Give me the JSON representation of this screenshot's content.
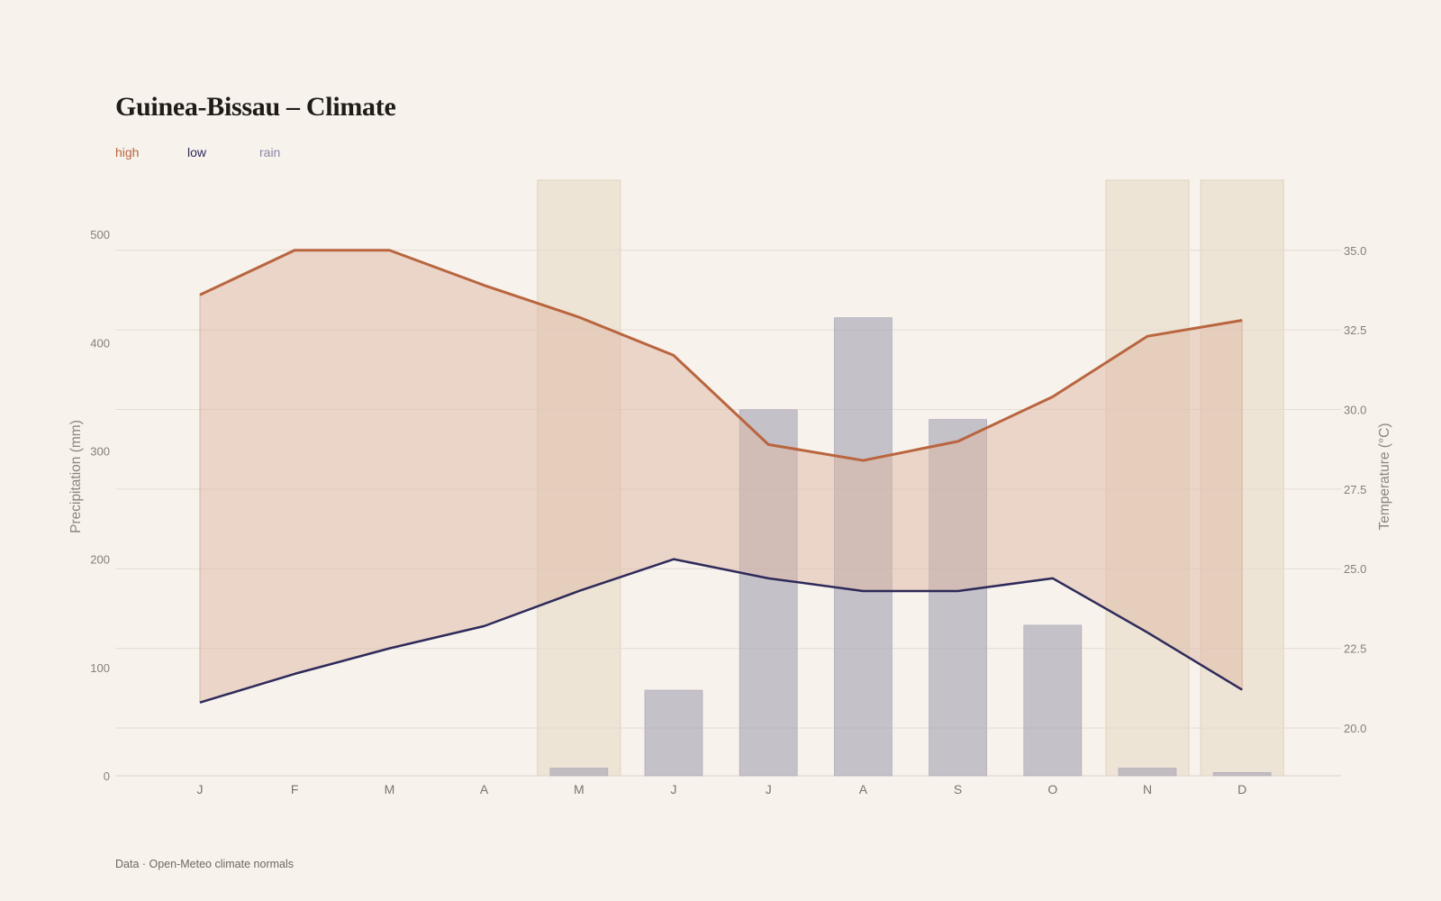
{
  "title": "Guinea-Bissau – Climate",
  "legend": {
    "high": "high",
    "low": "low",
    "rain": "rain"
  },
  "source": "Data · Open-Meteo climate normals",
  "colors": {
    "high": "#b9653f",
    "low": "#2e2a5a",
    "rain": "#8b87a6",
    "band_fill": "#dfb7a3",
    "rain_bar": "#aaa6b6",
    "dry_highlight": "#e6d8c2"
  },
  "chart_data": {
    "type": "bar",
    "categories": [
      "J",
      "F",
      "M",
      "A",
      "M",
      "J",
      "J",
      "A",
      "S",
      "O",
      "N",
      "D"
    ],
    "series": [
      {
        "name": "rain",
        "type": "bar",
        "axis": "left",
        "values": [
          0,
          0,
          0,
          0,
          7,
          79,
          338,
          423,
          329,
          139,
          7,
          3
        ]
      },
      {
        "name": "high",
        "type": "line",
        "axis": "right",
        "values": [
          33.6,
          35.0,
          35.0,
          33.9,
          32.9,
          31.7,
          28.9,
          28.4,
          29.0,
          30.4,
          32.3,
          32.8
        ]
      },
      {
        "name": "low",
        "type": "line",
        "axis": "right",
        "values": [
          20.8,
          21.7,
          22.5,
          23.2,
          24.3,
          25.3,
          24.7,
          24.3,
          24.3,
          24.7,
          23.0,
          21.2
        ]
      }
    ],
    "highlighted_months": [
      4,
      10,
      11
    ],
    "ylabel_left": "Precipitation (mm)",
    "ylabel_right": "Temperature (°C)",
    "ylim_left": [
      0,
      550
    ],
    "ylim_right": [
      18.5,
      37.2
    ],
    "yticks_left": [
      0,
      100,
      200,
      300,
      400,
      500
    ],
    "yticks_right": [
      20.0,
      22.5,
      25.0,
      27.5,
      30.0,
      32.5,
      35.0
    ],
    "grid": true,
    "legend_position": "top-left"
  }
}
